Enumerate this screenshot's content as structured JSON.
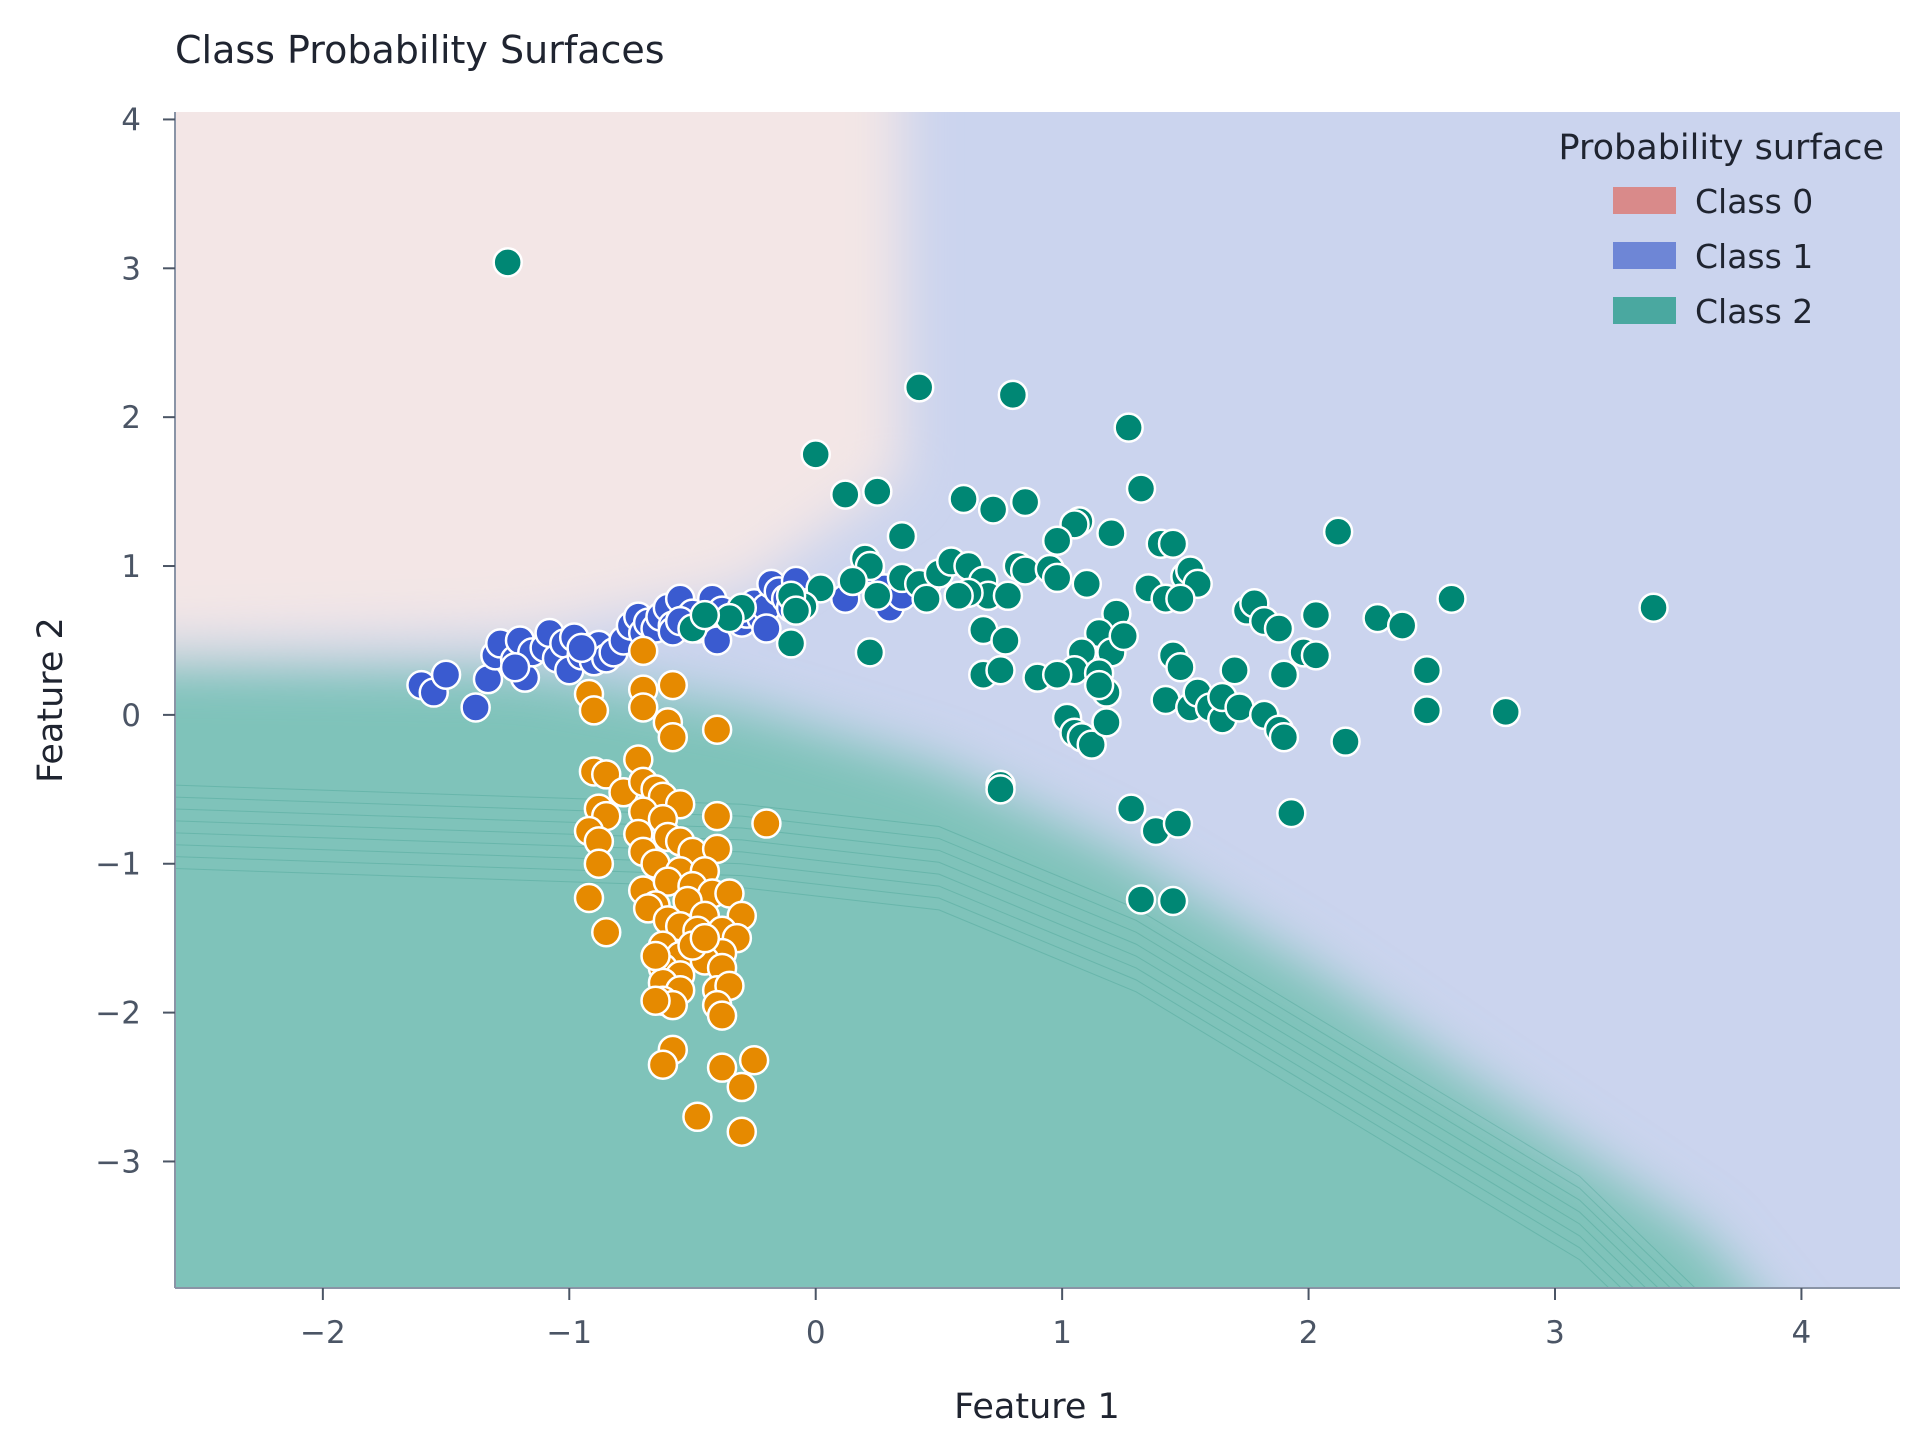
{
  "chart_data": {
    "type": "scatter",
    "title": "Class Probability Surfaces",
    "xlabel": "Feature 1",
    "ylabel": "Feature 2",
    "xlim": [
      -2.6,
      4.4
    ],
    "ylim": [
      -3.85,
      4.05
    ],
    "xticks": [
      -2,
      -1,
      0,
      1,
      2,
      3,
      4
    ],
    "yticks": [
      -3,
      -2,
      -1,
      0,
      1,
      2,
      3,
      4
    ],
    "xtick_labels": [
      "−2",
      "−1",
      "0",
      "1",
      "2",
      "3",
      "4"
    ],
    "ytick_labels": [
      "−3",
      "−2",
      "−1",
      "0",
      "1",
      "2",
      "3",
      "4"
    ],
    "grid": false,
    "legend": {
      "title": "Probability surface",
      "placement": "top-right",
      "entries": [
        {
          "label": "Class 0",
          "color": "#d98a8a"
        },
        {
          "label": "Class 1",
          "color": "#6e86d6"
        },
        {
          "label": "Class 2",
          "color": "#4aa8a0"
        }
      ]
    },
    "surface_colors": {
      "class0": "#f3e6e6",
      "class1": "#cbd4ee",
      "class2": "#7fc3ba"
    },
    "series": [
      {
        "color": "#3a5bd0",
        "points": [
          [
            -1.6,
            0.2
          ],
          [
            -1.55,
            0.15
          ],
          [
            -1.5,
            0.27
          ],
          [
            -1.38,
            0.05
          ],
          [
            -1.33,
            0.24
          ],
          [
            -1.3,
            0.4
          ],
          [
            -1.28,
            0.48
          ],
          [
            -1.22,
            0.37
          ],
          [
            -1.2,
            0.5
          ],
          [
            -1.18,
            0.25
          ],
          [
            -1.15,
            0.42
          ],
          [
            -1.1,
            0.45
          ],
          [
            -1.08,
            0.55
          ],
          [
            -1.05,
            0.38
          ],
          [
            -1.02,
            0.48
          ],
          [
            -1.0,
            0.3
          ],
          [
            -0.98,
            0.52
          ],
          [
            -0.95,
            0.4
          ],
          [
            -0.92,
            0.45
          ],
          [
            -0.9,
            0.36
          ],
          [
            -0.88,
            0.47
          ],
          [
            -0.85,
            0.38
          ],
          [
            -0.82,
            0.42
          ],
          [
            -0.78,
            0.5
          ],
          [
            -0.75,
            0.6
          ],
          [
            -0.72,
            0.66
          ],
          [
            -0.7,
            0.55
          ],
          [
            -0.68,
            0.62
          ],
          [
            -0.65,
            0.58
          ],
          [
            -0.63,
            0.66
          ],
          [
            -0.6,
            0.72
          ],
          [
            -0.58,
            0.6
          ],
          [
            -0.55,
            0.78
          ],
          [
            -0.53,
            0.64
          ],
          [
            -0.5,
            0.68
          ],
          [
            -0.48,
            0.58
          ],
          [
            -0.45,
            0.63
          ],
          [
            -0.42,
            0.78
          ],
          [
            -0.4,
            0.5
          ],
          [
            -0.38,
            0.7
          ],
          [
            -0.35,
            0.65
          ],
          [
            -0.3,
            0.62
          ],
          [
            -0.28,
            0.68
          ],
          [
            -0.25,
            0.75
          ],
          [
            -0.22,
            0.65
          ],
          [
            -0.2,
            0.72
          ],
          [
            -0.18,
            0.88
          ],
          [
            -0.15,
            0.83
          ],
          [
            -0.12,
            0.78
          ],
          [
            -0.1,
            0.72
          ],
          [
            -0.08,
            0.9
          ],
          [
            -0.05,
            0.75
          ],
          [
            0.12,
            0.78
          ],
          [
            0.15,
            0.9
          ],
          [
            0.22,
            0.98
          ],
          [
            0.28,
            0.85
          ],
          [
            0.3,
            0.72
          ],
          [
            0.35,
            0.8
          ],
          [
            0.45,
            0.88
          ],
          [
            -1.22,
            0.32
          ],
          [
            -0.58,
            0.56
          ],
          [
            -0.2,
            0.58
          ],
          [
            -0.95,
            0.45
          ],
          [
            -0.55,
            0.63
          ]
        ]
      },
      {
        "color": "#e68a00",
        "points": [
          [
            -0.7,
            0.43
          ],
          [
            -0.92,
            0.14
          ],
          [
            -0.9,
            0.03
          ],
          [
            -0.7,
            0.17
          ],
          [
            -0.7,
            0.05
          ],
          [
            -0.58,
            0.2
          ],
          [
            -0.6,
            -0.05
          ],
          [
            -0.58,
            -0.15
          ],
          [
            -0.4,
            -0.1
          ],
          [
            -0.9,
            -0.38
          ],
          [
            -0.85,
            -0.4
          ],
          [
            -0.78,
            -0.52
          ],
          [
            -0.72,
            -0.3
          ],
          [
            -0.7,
            -0.45
          ],
          [
            -0.65,
            -0.5
          ],
          [
            -0.62,
            -0.55
          ],
          [
            -0.55,
            -0.6
          ],
          [
            -0.88,
            -0.63
          ],
          [
            -0.85,
            -0.68
          ],
          [
            -0.7,
            -0.65
          ],
          [
            -0.62,
            -0.7
          ],
          [
            -0.4,
            -0.68
          ],
          [
            -0.2,
            -0.73
          ],
          [
            -0.92,
            -0.78
          ],
          [
            -0.88,
            -0.85
          ],
          [
            -0.72,
            -0.8
          ],
          [
            -0.6,
            -0.82
          ],
          [
            -0.55,
            -0.85
          ],
          [
            -0.5,
            -0.92
          ],
          [
            -0.4,
            -0.9
          ],
          [
            -0.7,
            -0.92
          ],
          [
            -0.88,
            -1.0
          ],
          [
            -0.65,
            -1.0
          ],
          [
            -0.55,
            -1.05
          ],
          [
            -0.45,
            -1.05
          ],
          [
            -0.7,
            -1.18
          ],
          [
            -0.6,
            -1.12
          ],
          [
            -0.5,
            -1.15
          ],
          [
            -0.42,
            -1.2
          ],
          [
            -0.35,
            -1.2
          ],
          [
            -0.92,
            -1.23
          ],
          [
            -0.65,
            -1.28
          ],
          [
            -0.52,
            -1.25
          ],
          [
            -0.45,
            -1.35
          ],
          [
            -0.3,
            -1.35
          ],
          [
            -0.68,
            -1.3
          ],
          [
            -0.6,
            -1.38
          ],
          [
            -0.55,
            -1.42
          ],
          [
            -0.48,
            -1.45
          ],
          [
            -0.38,
            -1.45
          ],
          [
            -0.32,
            -1.5
          ],
          [
            -0.85,
            -1.46
          ],
          [
            -0.62,
            -1.55
          ],
          [
            -0.55,
            -1.62
          ],
          [
            -0.45,
            -1.6
          ],
          [
            -0.38,
            -1.6
          ],
          [
            -0.62,
            -1.7
          ],
          [
            -0.55,
            -1.75
          ],
          [
            -0.45,
            -1.65
          ],
          [
            -0.38,
            -1.7
          ],
          [
            -0.62,
            -1.8
          ],
          [
            -0.55,
            -1.85
          ],
          [
            -0.4,
            -1.85
          ],
          [
            -0.35,
            -1.82
          ],
          [
            -0.62,
            -1.92
          ],
          [
            -0.58,
            -1.95
          ],
          [
            -0.4,
            -1.95
          ],
          [
            -0.38,
            -2.02
          ],
          [
            -0.58,
            -2.25
          ],
          [
            -0.62,
            -2.35
          ],
          [
            -0.38,
            -2.37
          ],
          [
            -0.3,
            -2.5
          ],
          [
            -0.25,
            -2.32
          ],
          [
            -0.48,
            -2.7
          ],
          [
            -0.3,
            -2.8
          ],
          [
            -0.65,
            -1.92
          ],
          [
            -0.5,
            -1.55
          ],
          [
            -0.45,
            -1.5
          ],
          [
            -0.65,
            -1.62
          ]
        ]
      },
      {
        "color": "#008774",
        "points": [
          [
            -1.25,
            3.04
          ],
          [
            0.0,
            1.75
          ],
          [
            0.42,
            2.2
          ],
          [
            0.8,
            2.15
          ],
          [
            1.27,
            1.93
          ],
          [
            0.12,
            1.48
          ],
          [
            0.25,
            1.5
          ],
          [
            0.6,
            1.45
          ],
          [
            0.72,
            1.38
          ],
          [
            0.85,
            1.43
          ],
          [
            1.07,
            1.3
          ],
          [
            1.05,
            1.28
          ],
          [
            1.32,
            1.52
          ],
          [
            0.98,
            1.17
          ],
          [
            0.35,
            1.2
          ],
          [
            0.2,
            1.05
          ],
          [
            0.22,
            1.0
          ],
          [
            0.15,
            0.9
          ],
          [
            0.02,
            0.85
          ],
          [
            -0.05,
            0.73
          ],
          [
            -0.1,
            0.8
          ],
          [
            -0.08,
            0.7
          ],
          [
            -0.3,
            0.72
          ],
          [
            -0.35,
            0.65
          ],
          [
            -0.5,
            0.58
          ],
          [
            -0.45,
            0.67
          ],
          [
            0.25,
            0.8
          ],
          [
            0.35,
            0.92
          ],
          [
            0.42,
            0.88
          ],
          [
            0.45,
            0.78
          ],
          [
            0.5,
            0.95
          ],
          [
            0.55,
            1.03
          ],
          [
            0.62,
            1.0
          ],
          [
            0.68,
            0.9
          ],
          [
            0.7,
            0.8
          ],
          [
            0.62,
            0.82
          ],
          [
            0.58,
            0.8
          ],
          [
            0.78,
            0.8
          ],
          [
            0.82,
            1.0
          ],
          [
            0.85,
            0.97
          ],
          [
            0.95,
            0.98
          ],
          [
            0.98,
            0.92
          ],
          [
            1.1,
            0.88
          ],
          [
            1.2,
            1.22
          ],
          [
            1.4,
            1.15
          ],
          [
            1.45,
            1.15
          ],
          [
            1.5,
            0.93
          ],
          [
            1.52,
            0.97
          ],
          [
            1.55,
            0.88
          ],
          [
            1.35,
            0.85
          ],
          [
            1.42,
            0.78
          ],
          [
            1.48,
            0.78
          ],
          [
            1.22,
            0.68
          ],
          [
            1.15,
            0.55
          ],
          [
            1.2,
            0.42
          ],
          [
            1.08,
            0.42
          ],
          [
            1.05,
            0.3
          ],
          [
            1.15,
            0.28
          ],
          [
            1.18,
            0.15
          ],
          [
            1.15,
            0.2
          ],
          [
            0.68,
            0.27
          ],
          [
            0.75,
            0.3
          ],
          [
            0.9,
            0.25
          ],
          [
            0.98,
            0.27
          ],
          [
            0.68,
            0.57
          ],
          [
            0.77,
            0.5
          ],
          [
            1.02,
            -0.02
          ],
          [
            1.05,
            -0.12
          ],
          [
            1.08,
            -0.15
          ],
          [
            1.12,
            -0.2
          ],
          [
            1.18,
            -0.05
          ],
          [
            1.25,
            0.53
          ],
          [
            1.42,
            0.1
          ],
          [
            1.45,
            0.4
          ],
          [
            1.48,
            0.32
          ],
          [
            1.52,
            0.05
          ],
          [
            1.55,
            0.15
          ],
          [
            1.6,
            0.05
          ],
          [
            1.65,
            -0.03
          ],
          [
            1.65,
            0.12
          ],
          [
            1.7,
            0.3
          ],
          [
            1.72,
            0.05
          ],
          [
            1.75,
            0.7
          ],
          [
            1.78,
            0.75
          ],
          [
            1.82,
            0.63
          ],
          [
            1.82,
            0.0
          ],
          [
            1.88,
            0.58
          ],
          [
            1.88,
            -0.1
          ],
          [
            1.9,
            -0.15
          ],
          [
            1.9,
            0.27
          ],
          [
            1.98,
            0.42
          ],
          [
            2.03,
            0.4
          ],
          [
            2.03,
            0.67
          ],
          [
            2.12,
            1.23
          ],
          [
            2.15,
            -0.18
          ],
          [
            2.28,
            0.65
          ],
          [
            2.38,
            0.6
          ],
          [
            2.48,
            0.3
          ],
          [
            2.48,
            0.03
          ],
          [
            2.58,
            0.78
          ],
          [
            2.8,
            0.02
          ],
          [
            3.4,
            0.72
          ],
          [
            0.22,
            0.42
          ],
          [
            -0.1,
            0.48
          ],
          [
            0.75,
            -0.47
          ],
          [
            0.75,
            -0.5
          ],
          [
            1.28,
            -0.63
          ],
          [
            1.38,
            -0.78
          ],
          [
            1.47,
            -0.73
          ],
          [
            1.32,
            -1.24
          ],
          [
            1.45,
            -1.25
          ],
          [
            1.93,
            -0.66
          ]
        ]
      }
    ]
  }
}
